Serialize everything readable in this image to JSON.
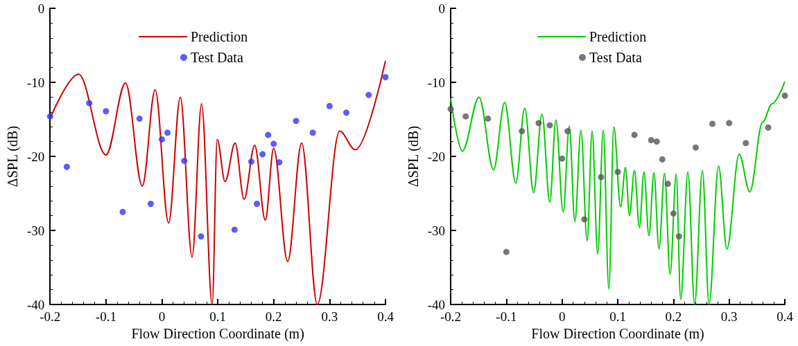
{
  "chart_data": [
    {
      "type": "line",
      "xlabel": "Flow Direction Coordinate (m)",
      "ylabel": "ΔSPL (dB)",
      "xlim": [
        -0.2,
        0.4
      ],
      "xticks": [
        -0.2,
        -0.1,
        0,
        0.1,
        0.2,
        0.3,
        0.4
      ],
      "ylim": [
        -40,
        0
      ],
      "yticks": [
        -40,
        -30,
        -20,
        -10,
        0
      ],
      "legend": "top",
      "grid": false,
      "series": [
        {
          "name": "Prediction",
          "color": "#cc0000",
          "marker": "none",
          "line_style": "solid",
          "x": [
            -0.2,
            -0.149,
            -0.1,
            -0.065,
            -0.035,
            -0.012,
            0.012,
            0.033,
            0.054,
            0.071,
            0.09,
            0.099,
            0.113,
            0.131,
            0.147,
            0.166,
            0.185,
            0.2,
            0.225,
            0.25,
            0.278,
            0.318,
            0.346,
            0.4
          ],
          "values": [
            -14.9,
            -8.9,
            -19.8,
            -10.1,
            -24.0,
            -11.0,
            -29.0,
            -12.0,
            -33.6,
            -12.9,
            -40,
            -17.7,
            -23.4,
            -18.2,
            -25.8,
            -18.5,
            -28.6,
            -18.9,
            -34.2,
            -18.2,
            -40,
            -16.6,
            -19.1,
            -7.1
          ]
        },
        {
          "name": "Test Data",
          "type": "scatter",
          "color": "#3333ff",
          "marker": "circle",
          "x": [
            -0.2,
            -0.17,
            -0.13,
            -0.1,
            -0.07,
            -0.04,
            -0.02,
            0.0,
            0.01,
            0.04,
            0.07,
            0.13,
            0.16,
            0.17,
            0.18,
            0.19,
            0.2,
            0.21,
            0.24,
            0.27,
            0.3,
            0.33,
            0.37,
            0.4
          ],
          "values": [
            -14.6,
            -21.4,
            -12.8,
            -13.9,
            -27.5,
            -14.9,
            -26.4,
            -17.7,
            -16.8,
            -20.6,
            -30.8,
            -29.9,
            -20.7,
            -26.4,
            -19.7,
            -17.1,
            -18.3,
            -20.8,
            -15.2,
            -16.8,
            -13.2,
            -14.1,
            -11.7,
            -9.3
          ]
        }
      ]
    },
    {
      "type": "line",
      "xlabel": "Flow Direction Coordinate (m)",
      "ylabel": "ΔSPL (dB)",
      "xlim": [
        -0.2,
        0.4
      ],
      "xticks": [
        -0.2,
        -0.1,
        0,
        0.1,
        0.2,
        0.3,
        0.4
      ],
      "ylim": [
        -40,
        0
      ],
      "yticks": [
        -40,
        -30,
        -20,
        -10,
        0
      ],
      "legend": "top",
      "grid": false,
      "series": [
        {
          "name": "Prediction",
          "color": "#00cc00",
          "marker": "none",
          "line_style": "solid",
          "x": [
            -0.2,
            -0.179,
            -0.149,
            -0.123,
            -0.103,
            -0.083,
            -0.067,
            -0.051,
            -0.036,
            -0.022,
            -0.011,
            0.002,
            0.013,
            0.023,
            0.034,
            0.045,
            0.054,
            0.064,
            0.074,
            0.084,
            0.093,
            0.105,
            0.114,
            0.121,
            0.13,
            0.139,
            0.147,
            0.156,
            0.165,
            0.174,
            0.184,
            0.194,
            0.205,
            0.213,
            0.226,
            0.238,
            0.252,
            0.264,
            0.281,
            0.296,
            0.318,
            0.337,
            0.36,
            0.377,
            0.4
          ],
          "values": [
            -12.2,
            -19.3,
            -12.0,
            -21.8,
            -12.7,
            -23.6,
            -13.5,
            -24.9,
            -14.3,
            -26.2,
            -15.1,
            -27.5,
            -15.9,
            -28.8,
            -16.5,
            -31.4,
            -16.6,
            -33.2,
            -16.5,
            -37.9,
            -16.0,
            -26.8,
            -21.5,
            -28.0,
            -21.9,
            -29.6,
            -22.1,
            -30.7,
            -22.2,
            -32.5,
            -22.3,
            -35.9,
            -22.4,
            -39.3,
            -22.1,
            -40,
            -21.9,
            -40,
            -21.3,
            -32.5,
            -19.7,
            -24.8,
            -15.4,
            -12.9,
            -9.9
          ]
        },
        {
          "name": "Test Data",
          "type": "scatter",
          "color": "#555555",
          "marker": "circle",
          "x": [
            -0.2,
            -0.173,
            -0.133,
            -0.1,
            -0.072,
            -0.042,
            -0.022,
            0.0,
            0.01,
            0.04,
            0.07,
            0.1,
            0.13,
            0.16,
            0.17,
            0.18,
            0.19,
            0.2,
            0.21,
            0.24,
            0.27,
            0.3,
            0.33,
            0.37,
            0.4
          ],
          "values": [
            -13.6,
            -14.6,
            -14.9,
            -32.9,
            -16.6,
            -15.5,
            -15.8,
            -20.3,
            -16.6,
            -28.5,
            -22.8,
            -22.1,
            -17.1,
            -17.8,
            -18.0,
            -20.4,
            -23.7,
            -27.7,
            -30.8,
            -18.8,
            -15.6,
            -15.5,
            -18.2,
            -16.1,
            -11.8
          ]
        }
      ]
    }
  ]
}
